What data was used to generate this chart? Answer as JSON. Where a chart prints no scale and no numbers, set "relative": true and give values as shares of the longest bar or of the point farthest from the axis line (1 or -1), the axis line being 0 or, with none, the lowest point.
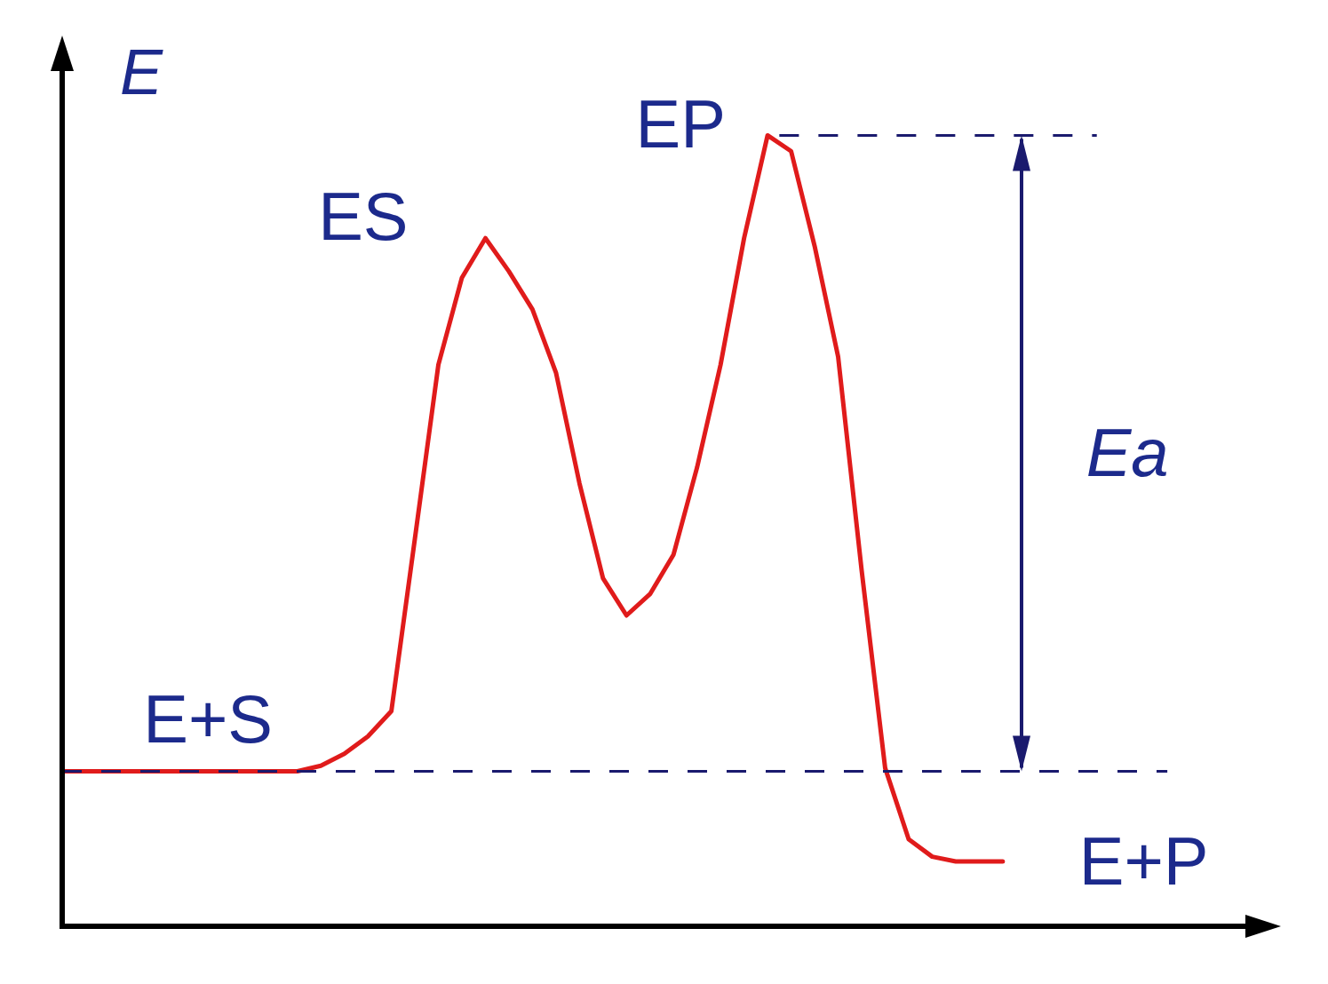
{
  "chart_data": {
    "type": "line",
    "relative": true,
    "ylabel": "E",
    "color": "#e01b1b",
    "line_style": "solid",
    "marker": "none",
    "grid": false,
    "legend": false,
    "categories": [
      null,
      null,
      null,
      null,
      null,
      null,
      null,
      null,
      null,
      null,
      null,
      null,
      null,
      null,
      null,
      null,
      null,
      null,
      null,
      null,
      null,
      null,
      null,
      null,
      null,
      null,
      null,
      null,
      null,
      null,
      null,
      null,
      null,
      null,
      null,
      null,
      null,
      null,
      null,
      null,
      null,
      null,
      null,
      null,
      null,
      null,
      null,
      null,
      null,
      null,
      null,
      null
    ],
    "values": [
      0.196,
      0.196,
      0.196,
      0.196,
      0.196,
      0.196,
      0.196,
      0.196,
      0.196,
      0.196,
      0.196,
      0.203,
      0.218,
      0.24,
      0.272,
      0.49,
      0.71,
      0.82,
      0.87,
      0.828,
      0.78,
      0.7,
      0.56,
      0.44,
      0.393,
      0.42,
      0.47,
      0.58,
      0.71,
      0.87,
      1,
      0.98,
      0.86,
      0.72,
      0.45,
      0.2,
      0.11,
      0.088,
      0.082,
      0.082,
      0.082,
      null,
      null,
      null,
      null,
      null,
      null,
      null,
      null,
      null,
      null,
      null
    ],
    "ref_lines": [
      {
        "axis": "y",
        "value": 0.196,
        "color": "#1a1a6e",
        "line_style": "dashed"
      },
      {
        "axis": "y",
        "value": 1,
        "color": "#1a1a6e",
        "line_style": "dashed"
      }
    ],
    "annotations": [
      "E+S",
      "ES",
      "EP",
      "E+P",
      "Ea"
    ]
  }
}
